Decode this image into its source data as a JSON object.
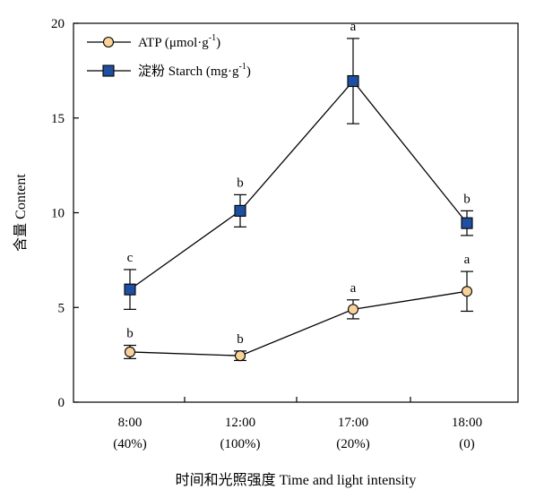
{
  "chart_data": {
    "type": "line",
    "title": "",
    "xlabel": "时间和光照强度 Time and light intensity",
    "ylabel": "含量 Content",
    "ylim": [
      0,
      20
    ],
    "yticks": [
      "0",
      "5",
      "10",
      "15",
      "20"
    ],
    "categories": [
      {
        "time": "8:00",
        "light": "(40%)"
      },
      {
        "time": "12:00",
        "light": "(100%)"
      },
      {
        "time": "17:00",
        "light": "(20%)"
      },
      {
        "time": "18:00",
        "light": "(0)"
      }
    ],
    "series": [
      {
        "name": "ATP (μmol·g",
        "name_sup": "-1",
        "name_tail": ")",
        "marker": "circle",
        "fill": "#F9D29A",
        "values": [
          2.65,
          2.45,
          4.9,
          5.85
        ],
        "error": [
          0.35,
          0.25,
          0.5,
          1.05
        ],
        "significance": [
          "b",
          "b",
          "a",
          "a"
        ]
      },
      {
        "name": "淀粉 Starch (mg·g",
        "name_sup": "-1",
        "name_tail": ")",
        "marker": "square",
        "fill": "#1F4FA0",
        "values": [
          5.95,
          10.1,
          16.95,
          9.45
        ],
        "error": [
          1.05,
          0.85,
          2.25,
          0.65
        ],
        "significance": [
          "c",
          "b",
          "a",
          "b"
        ]
      }
    ],
    "legend_position": "top-left",
    "grid": false
  }
}
